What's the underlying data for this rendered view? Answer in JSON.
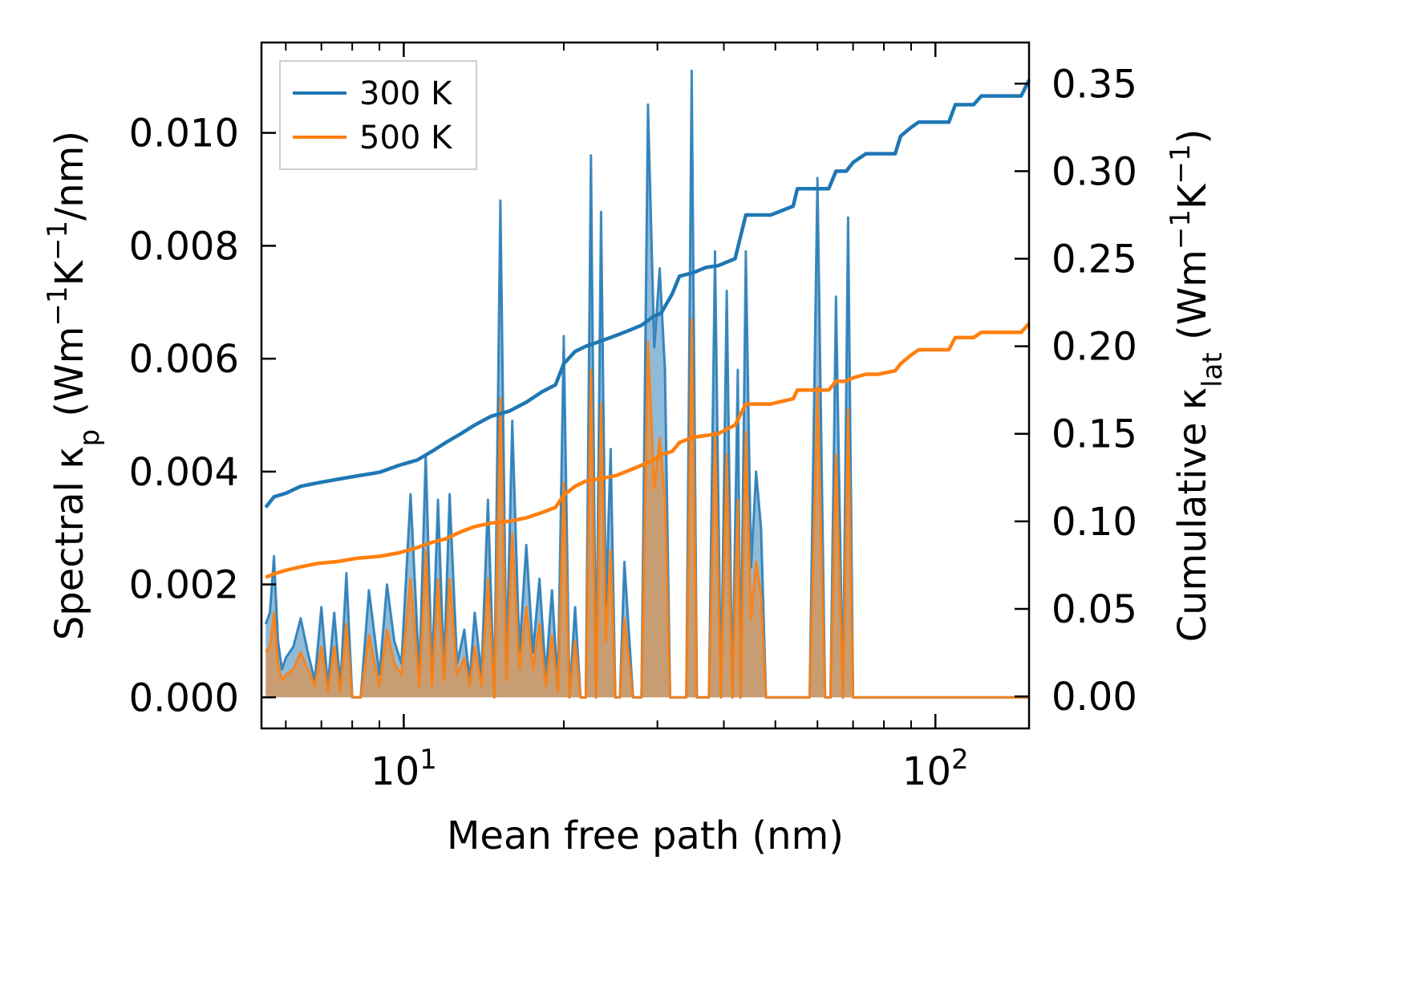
{
  "chart_data": {
    "type": "line",
    "xscale": "log",
    "xlim": [
      5.4,
      150
    ],
    "ylim_left": [
      -0.00055,
      0.0116
    ],
    "ylim_right": [
      -0.0183,
      0.3735
    ],
    "xlabel": "Mean free path (nm)",
    "ylabel_left": {
      "main": "Spectral κ",
      "sub": "p",
      "open": " (Wm",
      "e1": "−1",
      "k": "K",
      "e2": "−1",
      "tail": "/nm)"
    },
    "ylabel_right": {
      "main": "Cumulative κ",
      "sub": "lat",
      "open": " (Wm",
      "e1": "−1",
      "k": "K",
      "e2": "−1",
      "tail": ")"
    },
    "x_ticks": [
      {
        "value": 10,
        "base": "10",
        "exp": "1"
      },
      {
        "value": 100,
        "base": "10",
        "exp": "2"
      }
    ],
    "y_ticks_left": [
      {
        "value": 0,
        "label": "0.000"
      },
      {
        "value": 0.002,
        "label": "0.002"
      },
      {
        "value": 0.004,
        "label": "0.004"
      },
      {
        "value": 0.006,
        "label": "0.006"
      },
      {
        "value": 0.008,
        "label": "0.008"
      },
      {
        "value": 0.01,
        "label": "0.010"
      }
    ],
    "y_ticks_right": [
      {
        "value": 0,
        "label": "0.00"
      },
      {
        "value": 0.05,
        "label": "0.05"
      },
      {
        "value": 0.1,
        "label": "0.10"
      },
      {
        "value": 0.15,
        "label": "0.15"
      },
      {
        "value": 0.2,
        "label": "0.20"
      },
      {
        "value": 0.25,
        "label": "0.25"
      },
      {
        "value": 0.3,
        "label": "0.30"
      },
      {
        "value": 0.35,
        "label": "0.35"
      }
    ],
    "legend": {
      "position": "upper-left",
      "entries": [
        {
          "label": "300 K",
          "color": "#1f77b4"
        },
        {
          "label": "500 K",
          "color": "#ff7f0e"
        }
      ]
    },
    "series": [
      {
        "name": "300 K",
        "color": "#1f77b4",
        "cumulative": {
          "x": [
            5.5,
            5.7,
            6.0,
            6.4,
            6.9,
            7.5,
            8.2,
            9.0,
            9.8,
            10.6,
            11.3,
            12.0,
            12.8,
            13.6,
            14.6,
            15.8,
            17.0,
            18.2,
            19.3,
            20.0,
            21.0,
            22.0,
            23.0,
            24.0,
            25.0,
            26.0,
            27.0,
            28.0,
            29.5,
            30.5,
            32.0,
            33.0,
            35.0,
            37.0,
            39.0,
            42.0,
            44.0,
            49.0,
            54.0,
            55.0,
            63.0,
            65.0,
            68.0,
            70.0,
            74.0,
            78.0,
            84.0,
            86.0,
            90.0,
            93.0,
            106.0,
            109.0,
            118.0,
            122.0,
            145.0,
            150.0
          ],
          "y": [
            0.108,
            0.114,
            0.116,
            0.12,
            0.122,
            0.124,
            0.126,
            0.128,
            0.132,
            0.135,
            0.14,
            0.145,
            0.15,
            0.155,
            0.16,
            0.163,
            0.168,
            0.174,
            0.178,
            0.19,
            0.197,
            0.2,
            0.202,
            0.204,
            0.206,
            0.208,
            0.21,
            0.212,
            0.217,
            0.219,
            0.23,
            0.24,
            0.242,
            0.245,
            0.246,
            0.25,
            0.275,
            0.275,
            0.28,
            0.29,
            0.29,
            0.3,
            0.3,
            0.305,
            0.31,
            0.31,
            0.31,
            0.32,
            0.325,
            0.328,
            0.328,
            0.338,
            0.338,
            0.343,
            0.343,
            0.352
          ]
        },
        "spectral": {
          "x": [
            5.5,
            5.6,
            5.7,
            5.8,
            5.9,
            6.0,
            6.2,
            6.4,
            6.6,
            6.8,
            7.0,
            7.2,
            7.4,
            7.6,
            7.8,
            8.0,
            8.3,
            8.6,
            9.0,
            9.3,
            9.6,
            9.9,
            10.3,
            10.7,
            11.0,
            11.3,
            11.6,
            11.9,
            12.2,
            12.6,
            13.0,
            13.3,
            13.6,
            14.0,
            14.4,
            14.8,
            15.2,
            15.6,
            16.0,
            16.5,
            17.0,
            17.5,
            18.0,
            18.5,
            19.0,
            19.5,
            20.0,
            20.5,
            21.0,
            21.5,
            22.0,
            22.5,
            23.0,
            23.5,
            24.0,
            24.5,
            25.0,
            25.5,
            26.0,
            27.0,
            28.0,
            28.8,
            29.6,
            30.3,
            31.0,
            31.7,
            32.4,
            33.2,
            34.0,
            34.8,
            35.6,
            36.5,
            37.5,
            38.5,
            39.5,
            40.5,
            41.5,
            42.5,
            43.0,
            44.0,
            45.0,
            46.0,
            47.0,
            48.0,
            50.0,
            52.0,
            54.0,
            55.0,
            56.0,
            58.0,
            60.0,
            62.0,
            63.5,
            65.0,
            67.0,
            68.5,
            70.0,
            72.0,
            74.0,
            76.0,
            78.0,
            80.0,
            82.0,
            84.0,
            86.0,
            88.0,
            90.0,
            95.0,
            100.0,
            105.0,
            108.0,
            110.0,
            113.0,
            116.0,
            119.0,
            122.0,
            125.0,
            130.0,
            135.0,
            140.0,
            145.0,
            150.0
          ],
          "y": [
            0.0013,
            0.0015,
            0.0025,
            0.001,
            0.0005,
            0.0007,
            0.0009,
            0.0014,
            0.0008,
            0.0003,
            0.0016,
            0.0002,
            0.0015,
            0.0002,
            0.0022,
            0.0,
            0.0,
            0.0019,
            0.0004,
            0.002,
            0.001,
            0.0006,
            0.0036,
            0.0004,
            0.0043,
            0.0004,
            0.0035,
            0.0005,
            0.0036,
            0.0006,
            0.0012,
            0.0003,
            0.0015,
            0.0004,
            0.0035,
            0.0,
            0.0088,
            0.0005,
            0.0049,
            0.0008,
            0.0027,
            0.0008,
            0.0021,
            0.0004,
            0.0019,
            0.0002,
            0.0064,
            0.0,
            0.0016,
            0.0,
            0.0,
            0.0096,
            0.0,
            0.0086,
            0.0016,
            0.0044,
            0.0,
            0.0,
            0.0024,
            0.0,
            0.0,
            0.0105,
            0.0062,
            0.0076,
            0.0058,
            0.0,
            0.0,
            0.0,
            0.0,
            0.0111,
            0.0,
            0.0,
            0.0,
            0.0079,
            0.0,
            0.0072,
            0.0,
            0.0058,
            0.0,
            0.0079,
            0.0023,
            0.004,
            0.003,
            0.0,
            0.0,
            0.0,
            0.0,
            0.0,
            0.0,
            0.0,
            0.0092,
            0.0,
            0.0,
            0.0071,
            0.0,
            0.0085,
            0.0,
            0.0,
            0.0,
            0.0,
            0.0,
            0.0,
            0.0,
            0.0,
            0.0,
            0.0,
            0.0,
            0.0,
            0.0,
            0.0,
            0.0,
            0.0,
            0.0,
            0.0,
            0.0,
            0.0,
            0.0,
            0.0,
            0.0,
            0.0,
            0.0,
            0.0
          ]
        }
      },
      {
        "name": "500 K",
        "color": "#ff7f0e",
        "cumulative": {
          "x": [
            5.5,
            5.7,
            6.0,
            6.4,
            6.9,
            7.5,
            8.2,
            9.0,
            9.8,
            10.6,
            11.3,
            12.0,
            12.8,
            13.6,
            14.6,
            15.8,
            17.0,
            18.2,
            19.3,
            20.0,
            21.0,
            22.0,
            23.0,
            24.0,
            25.0,
            26.0,
            27.0,
            28.0,
            29.5,
            30.5,
            32.0,
            33.0,
            35.0,
            37.0,
            39.0,
            42.0,
            44.0,
            49.0,
            54.0,
            55.0,
            63.0,
            65.0,
            68.0,
            70.0,
            74.0,
            78.0,
            84.0,
            86.0,
            90.0,
            93.0,
            106.0,
            109.0,
            118.0,
            122.0,
            145.0,
            150.0
          ],
          "y": [
            0.068,
            0.07,
            0.072,
            0.074,
            0.076,
            0.077,
            0.079,
            0.08,
            0.082,
            0.085,
            0.088,
            0.09,
            0.094,
            0.097,
            0.099,
            0.1,
            0.102,
            0.105,
            0.108,
            0.115,
            0.12,
            0.123,
            0.124,
            0.125,
            0.126,
            0.128,
            0.13,
            0.132,
            0.135,
            0.138,
            0.14,
            0.145,
            0.148,
            0.149,
            0.15,
            0.155,
            0.167,
            0.167,
            0.17,
            0.175,
            0.175,
            0.18,
            0.18,
            0.182,
            0.184,
            0.184,
            0.186,
            0.19,
            0.195,
            0.198,
            0.198,
            0.205,
            0.205,
            0.208,
            0.208,
            0.213
          ]
        },
        "spectral": {
          "x": [
            5.5,
            5.6,
            5.7,
            5.8,
            5.9,
            6.0,
            6.2,
            6.4,
            6.6,
            6.8,
            7.0,
            7.2,
            7.4,
            7.6,
            7.8,
            8.0,
            8.3,
            8.6,
            9.0,
            9.3,
            9.6,
            9.9,
            10.3,
            10.7,
            11.0,
            11.3,
            11.6,
            11.9,
            12.2,
            12.6,
            13.0,
            13.3,
            13.6,
            14.0,
            14.4,
            14.8,
            15.2,
            15.6,
            16.0,
            16.5,
            17.0,
            17.5,
            18.0,
            18.5,
            19.0,
            19.5,
            20.0,
            20.5,
            21.0,
            21.5,
            22.0,
            22.5,
            23.0,
            23.5,
            24.0,
            24.5,
            25.0,
            25.5,
            26.0,
            27.0,
            28.0,
            28.8,
            29.6,
            30.3,
            31.0,
            31.7,
            32.4,
            33.2,
            34.0,
            34.8,
            35.6,
            36.5,
            37.5,
            38.5,
            39.5,
            40.5,
            41.5,
            42.5,
            43.0,
            44.0,
            45.0,
            46.0,
            47.0,
            48.0,
            50.0,
            52.0,
            54.0,
            55.0,
            56.0,
            58.0,
            60.0,
            62.0,
            63.5,
            65.0,
            67.0,
            68.5,
            70.0,
            72.0,
            74.0,
            76.0,
            78.0,
            80.0,
            82.0,
            84.0,
            86.0,
            88.0,
            90.0,
            95.0,
            100.0,
            105.0,
            108.0,
            110.0,
            113.0,
            116.0,
            119.0,
            122.0,
            125.0,
            130.0,
            135.0,
            140.0,
            145.0,
            150.0
          ],
          "y": [
            0.0008,
            0.0009,
            0.0015,
            0.0006,
            0.0003,
            0.0004,
            0.0005,
            0.0008,
            0.0005,
            0.0002,
            0.0009,
            0.0001,
            0.0009,
            0.0001,
            0.0013,
            0.0,
            0.0,
            0.0011,
            0.0002,
            0.0012,
            0.0006,
            0.0004,
            0.0021,
            0.0002,
            0.0026,
            0.0002,
            0.0021,
            0.0003,
            0.0021,
            0.0004,
            0.0007,
            0.0002,
            0.0009,
            0.0002,
            0.0021,
            0.0,
            0.0053,
            0.0003,
            0.0029,
            0.0005,
            0.0016,
            0.0005,
            0.0013,
            0.0002,
            0.0011,
            0.0001,
            0.0038,
            0.0,
            0.001,
            0.0,
            0.0,
            0.0058,
            0.0,
            0.0052,
            0.001,
            0.0026,
            0.0,
            0.0,
            0.0014,
            0.0,
            0.0,
            0.0063,
            0.0037,
            0.0046,
            0.0035,
            0.0,
            0.0,
            0.0,
            0.0,
            0.0067,
            0.0,
            0.0,
            0.0,
            0.0047,
            0.0,
            0.0043,
            0.0,
            0.0035,
            0.0,
            0.0047,
            0.0014,
            0.0024,
            0.0018,
            0.0,
            0.0,
            0.0,
            0.0,
            0.0,
            0.0,
            0.0,
            0.0055,
            0.0,
            0.0,
            0.0043,
            0.0,
            0.0051,
            0.0,
            0.0,
            0.0,
            0.0,
            0.0,
            0.0,
            0.0,
            0.0,
            0.0,
            0.0,
            0.0,
            0.0,
            0.0,
            0.0,
            0.0,
            0.0,
            0.0,
            0.0,
            0.0,
            0.0,
            0.0,
            0.0,
            0.0,
            0.0,
            0.0,
            0.0
          ]
        }
      }
    ]
  }
}
